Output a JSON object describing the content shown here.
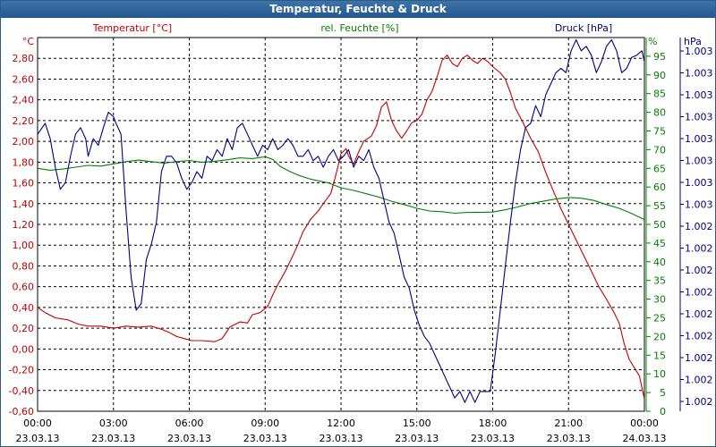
{
  "window": {
    "title": "Temperatur, Feuchte & Druck"
  },
  "chart_data": {
    "type": "line",
    "title": "Temperatur, Feuchte & Druck",
    "grid": true,
    "x_ticks": [
      {
        "t": 0,
        "time": "00:00",
        "date": "23.03.13"
      },
      {
        "t": 3,
        "time": "03:00",
        "date": "23.03.13"
      },
      {
        "t": 6,
        "time": "06:00",
        "date": "23.03.13"
      },
      {
        "t": 9,
        "time": "09:00",
        "date": "23.03.13"
      },
      {
        "t": 12,
        "time": "12:00",
        "date": "23.03.13"
      },
      {
        "t": 15,
        "time": "15:00",
        "date": "23.03.13"
      },
      {
        "t": 18,
        "time": "18:00",
        "date": "23.03.13"
      },
      {
        "t": 21,
        "time": "21:00",
        "date": "23.03.13"
      },
      {
        "t": 24,
        "time": "00:00",
        "date": "24.03.13"
      }
    ],
    "axes": {
      "temp": {
        "label": "Temperatur [°C]",
        "unit": "°C",
        "color": "#c00000",
        "range": [
          -0.6,
          3.0
        ],
        "ticks": [
          "-0,60",
          "-0,40",
          "-0,20",
          "0,00",
          "0,20",
          "0,40",
          "0,60",
          "0,80",
          "1,00",
          "1,20",
          "1,40",
          "1,60",
          "1,80",
          "2,00",
          "2,20",
          "2,40",
          "2,60",
          "2,80"
        ]
      },
      "hum": {
        "label": "rel. Feuchte [%]",
        "unit": "%",
        "color": "#008000",
        "range": [
          0,
          100
        ],
        "ticks": [
          "0",
          "5",
          "10",
          "15",
          "20",
          "25",
          "30",
          "35",
          "40",
          "45",
          "50",
          "55",
          "60",
          "65",
          "70",
          "75",
          "80",
          "85",
          "90",
          "95"
        ]
      },
      "press": {
        "label": "Druck [hPa]",
        "unit": "hPa",
        "color": "#000080",
        "range": [
          0,
          17
        ],
        "ticks": [
          "1.002",
          "1.002",
          "1.002",
          "1.002",
          "1.002",
          "1.002",
          "1.002",
          "1.002",
          "1.002",
          "1.003",
          "1.003",
          "1.003",
          "1.003",
          "1.003",
          "1.003",
          "1.003",
          "1.003"
        ]
      }
    },
    "series": [
      {
        "name": "Temperatur [°C]",
        "axis": "temp",
        "color": "#c00000",
        "points": [
          [
            0,
            0.4
          ],
          [
            0.3,
            0.35
          ],
          [
            0.7,
            0.3
          ],
          [
            1.2,
            0.28
          ],
          [
            1.6,
            0.24
          ],
          [
            2.0,
            0.22
          ],
          [
            2.5,
            0.22
          ],
          [
            3.0,
            0.2
          ],
          [
            3.5,
            0.22
          ],
          [
            4.0,
            0.21
          ],
          [
            4.5,
            0.22
          ],
          [
            4.9,
            0.19
          ],
          [
            5.2,
            0.16
          ],
          [
            5.5,
            0.12
          ],
          [
            5.8,
            0.1
          ],
          [
            6.1,
            0.08
          ],
          [
            6.5,
            0.08
          ],
          [
            7.0,
            0.07
          ],
          [
            7.3,
            0.1
          ],
          [
            7.6,
            0.21
          ],
          [
            8.0,
            0.26
          ],
          [
            8.3,
            0.25
          ],
          [
            8.5,
            0.33
          ],
          [
            8.8,
            0.35
          ],
          [
            9.1,
            0.41
          ],
          [
            9.3,
            0.52
          ],
          [
            9.5,
            0.62
          ],
          [
            9.8,
            0.75
          ],
          [
            10.1,
            0.9
          ],
          [
            10.3,
            1.01
          ],
          [
            10.5,
            1.13
          ],
          [
            10.8,
            1.25
          ],
          [
            11.1,
            1.33
          ],
          [
            11.3,
            1.4
          ],
          [
            11.6,
            1.5
          ],
          [
            11.8,
            1.68
          ],
          [
            12.0,
            1.88
          ],
          [
            12.2,
            1.93
          ],
          [
            12.3,
            1.86
          ],
          [
            12.5,
            1.78
          ],
          [
            12.7,
            1.9
          ],
          [
            12.9,
            2.0
          ],
          [
            13.2,
            2.05
          ],
          [
            13.4,
            2.15
          ],
          [
            13.6,
            2.33
          ],
          [
            13.8,
            2.38
          ],
          [
            14.0,
            2.2
          ],
          [
            14.2,
            2.1
          ],
          [
            14.4,
            2.03
          ],
          [
            14.6,
            2.1
          ],
          [
            14.8,
            2.18
          ],
          [
            15.0,
            2.2
          ],
          [
            15.2,
            2.26
          ],
          [
            15.4,
            2.4
          ],
          [
            15.6,
            2.48
          ],
          [
            15.8,
            2.62
          ],
          [
            16.0,
            2.78
          ],
          [
            16.2,
            2.83
          ],
          [
            16.4,
            2.75
          ],
          [
            16.6,
            2.72
          ],
          [
            16.8,
            2.8
          ],
          [
            17.0,
            2.83
          ],
          [
            17.2,
            2.78
          ],
          [
            17.4,
            2.75
          ],
          [
            17.6,
            2.8
          ],
          [
            17.8,
            2.77
          ],
          [
            18.0,
            2.72
          ],
          [
            18.3,
            2.66
          ],
          [
            18.5,
            2.6
          ],
          [
            18.7,
            2.47
          ],
          [
            18.9,
            2.32
          ],
          [
            19.2,
            2.18
          ],
          [
            19.5,
            2.03
          ],
          [
            19.8,
            1.9
          ],
          [
            20.1,
            1.7
          ],
          [
            20.4,
            1.52
          ],
          [
            20.7,
            1.35
          ],
          [
            21.0,
            1.2
          ],
          [
            21.3,
            1.05
          ],
          [
            21.6,
            0.9
          ],
          [
            21.9,
            0.75
          ],
          [
            22.2,
            0.6
          ],
          [
            22.5,
            0.48
          ],
          [
            22.8,
            0.35
          ],
          [
            23.0,
            0.25
          ],
          [
            23.2,
            0.05
          ],
          [
            23.4,
            -0.1
          ],
          [
            23.6,
            -0.18
          ],
          [
            23.8,
            -0.26
          ],
          [
            24.0,
            -0.48
          ]
        ]
      },
      {
        "name": "rel. Feuchte [%]",
        "axis": "hum",
        "color": "#008000",
        "points": [
          [
            0,
            65
          ],
          [
            0.5,
            64.5
          ],
          [
            1,
            64.8
          ],
          [
            1.5,
            65.3
          ],
          [
            2,
            65.8
          ],
          [
            2.5,
            65.6
          ],
          [
            3,
            66.2
          ],
          [
            3.5,
            66.8
          ],
          [
            4,
            67.2
          ],
          [
            4.5,
            66.8
          ],
          [
            5,
            66.4
          ],
          [
            5.5,
            66.8
          ],
          [
            6,
            67.1
          ],
          [
            6.5,
            66.6
          ],
          [
            7,
            66.9
          ],
          [
            7.5,
            67.3
          ],
          [
            8,
            67.8
          ],
          [
            8.5,
            67.6
          ],
          [
            9,
            68.1
          ],
          [
            9.3,
            67.4
          ],
          [
            9.6,
            65.5
          ],
          [
            10,
            64.1
          ],
          [
            10.3,
            63.2
          ],
          [
            10.7,
            62.3
          ],
          [
            11,
            61.8
          ],
          [
            11.5,
            61.1
          ],
          [
            12,
            59.8
          ],
          [
            12.5,
            59.1
          ],
          [
            13,
            58.2
          ],
          [
            13.5,
            57.3
          ],
          [
            14,
            56.2
          ],
          [
            14.5,
            55.3
          ],
          [
            15,
            54.3
          ],
          [
            15.5,
            53.6
          ],
          [
            16,
            53.4
          ],
          [
            16.5,
            53.0
          ],
          [
            17,
            53.2
          ],
          [
            17.5,
            53.2
          ],
          [
            18,
            53.3
          ],
          [
            18.5,
            53.9
          ],
          [
            19,
            54.7
          ],
          [
            19.5,
            55.6
          ],
          [
            20,
            56.2
          ],
          [
            20.5,
            56.8
          ],
          [
            21,
            57.2
          ],
          [
            21.5,
            57.0
          ],
          [
            22,
            56.4
          ],
          [
            22.5,
            55.3
          ],
          [
            23,
            54.3
          ],
          [
            23.5,
            52.9
          ],
          [
            24,
            51.3
          ]
        ]
      },
      {
        "name": "Druck [hPa]",
        "axis": "press",
        "color": "#000080",
        "points": [
          [
            0,
            12.6
          ],
          [
            0.3,
            13.1
          ],
          [
            0.5,
            12.4
          ],
          [
            0.7,
            11.1
          ],
          [
            0.9,
            10.1
          ],
          [
            1.1,
            10.4
          ],
          [
            1.3,
            11.6
          ],
          [
            1.5,
            12.6
          ],
          [
            1.7,
            12.9
          ],
          [
            1.9,
            12.4
          ],
          [
            2.0,
            11.6
          ],
          [
            2.2,
            12.4
          ],
          [
            2.4,
            12.1
          ],
          [
            2.6,
            12.9
          ],
          [
            2.8,
            13.6
          ],
          [
            3.0,
            13.4
          ],
          [
            3.1,
            13.1
          ],
          [
            3.3,
            12.6
          ],
          [
            3.5,
            9.1
          ],
          [
            3.7,
            6.1
          ],
          [
            3.9,
            4.6
          ],
          [
            4.1,
            4.9
          ],
          [
            4.3,
            6.9
          ],
          [
            4.5,
            7.6
          ],
          [
            4.7,
            8.6
          ],
          [
            4.9,
            10.9
          ],
          [
            5.1,
            11.6
          ],
          [
            5.3,
            11.6
          ],
          [
            5.5,
            11.3
          ],
          [
            5.7,
            10.6
          ],
          [
            5.9,
            10.1
          ],
          [
            6.1,
            10.4
          ],
          [
            6.3,
            10.9
          ],
          [
            6.5,
            10.6
          ],
          [
            6.7,
            11.6
          ],
          [
            6.9,
            11.4
          ],
          [
            7.1,
            11.9
          ],
          [
            7.3,
            11.6
          ],
          [
            7.5,
            12.4
          ],
          [
            7.7,
            11.9
          ],
          [
            7.9,
            12.9
          ],
          [
            8.1,
            13.1
          ],
          [
            8.3,
            12.6
          ],
          [
            8.5,
            12.1
          ],
          [
            8.7,
            11.6
          ],
          [
            8.9,
            12.1
          ],
          [
            9.1,
            11.9
          ],
          [
            9.3,
            12.4
          ],
          [
            9.5,
            11.9
          ],
          [
            9.7,
            12.1
          ],
          [
            9.9,
            12.4
          ],
          [
            10.1,
            12.1
          ],
          [
            10.3,
            11.6
          ],
          [
            10.5,
            11.6
          ],
          [
            10.7,
            11.9
          ],
          [
            10.9,
            11.4
          ],
          [
            11.1,
            11.6
          ],
          [
            11.3,
            11.1
          ],
          [
            11.5,
            11.6
          ],
          [
            11.7,
            11.9
          ],
          [
            11.9,
            11.4
          ],
          [
            12.1,
            11.6
          ],
          [
            12.3,
            11.9
          ],
          [
            12.5,
            11.1
          ],
          [
            12.7,
            11.6
          ],
          [
            12.9,
            11.4
          ],
          [
            13.1,
            11.9
          ],
          [
            13.3,
            11.1
          ],
          [
            13.5,
            10.6
          ],
          [
            13.7,
            9.6
          ],
          [
            13.9,
            8.6
          ],
          [
            14.1,
            8.1
          ],
          [
            14.3,
            7.1
          ],
          [
            14.5,
            6.1
          ],
          [
            14.7,
            5.6
          ],
          [
            14.9,
            4.6
          ],
          [
            15.1,
            3.9
          ],
          [
            15.3,
            3.4
          ],
          [
            15.5,
            3.1
          ],
          [
            15.7,
            2.6
          ],
          [
            15.9,
            2.1
          ],
          [
            16.1,
            1.6
          ],
          [
            16.3,
            1.1
          ],
          [
            16.5,
            0.6
          ],
          [
            16.7,
            0.9
          ],
          [
            16.9,
            0.4
          ],
          [
            17.1,
            0.9
          ],
          [
            17.3,
            0.4
          ],
          [
            17.5,
            0.9
          ],
          [
            17.7,
            0.9
          ],
          [
            17.9,
            0.9
          ],
          [
            18.1,
            2.6
          ],
          [
            18.3,
            4.6
          ],
          [
            18.5,
            6.6
          ],
          [
            18.7,
            8.6
          ],
          [
            18.9,
            10.4
          ],
          [
            19.1,
            11.9
          ],
          [
            19.3,
            12.9
          ],
          [
            19.5,
            13.1
          ],
          [
            19.7,
            13.9
          ],
          [
            19.9,
            13.4
          ],
          [
            20.1,
            14.4
          ],
          [
            20.3,
            14.9
          ],
          [
            20.5,
            15.4
          ],
          [
            20.7,
            15.6
          ],
          [
            20.9,
            15.4
          ],
          [
            21.1,
            16.4
          ],
          [
            21.3,
            16.9
          ],
          [
            21.5,
            16.4
          ],
          [
            21.7,
            16.6
          ],
          [
            21.9,
            16.2
          ],
          [
            22.1,
            15.4
          ],
          [
            22.3,
            15.9
          ],
          [
            22.5,
            16.6
          ],
          [
            22.7,
            16.9
          ],
          [
            22.9,
            16.4
          ],
          [
            23.1,
            15.4
          ],
          [
            23.3,
            15.6
          ],
          [
            23.5,
            16.1
          ],
          [
            23.7,
            16.2
          ],
          [
            23.9,
            16.4
          ],
          [
            24.0,
            15.9
          ]
        ]
      }
    ]
  }
}
